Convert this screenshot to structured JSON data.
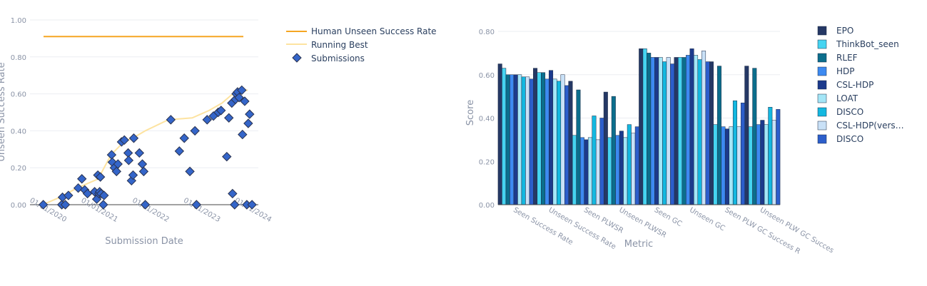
{
  "chart_data": [
    {
      "type": "scatter",
      "xlabel": "Submission Date",
      "ylabel": "Unseen Success Rate",
      "x_ticks": [
        "01/01/2020",
        "01/01/2021",
        "01/01/2022",
        "01/01/2023",
        "01/01/2024"
      ],
      "y_ticks": [
        "0.00",
        "0.20",
        "0.40",
        "0.60",
        "0.80",
        "1.00"
      ],
      "ylim": [
        0,
        1
      ],
      "xlim": [
        "2019-09-01",
        "2024-02-15"
      ],
      "legend_position": "right",
      "human_rate": {
        "name": "Human Unseen Success Rate",
        "value": 0.91,
        "color": "#f5a623"
      },
      "running_best": {
        "name": "Running Best",
        "color": "#fde3a0",
        "x": [
          "2019-12-01",
          "2020-04-01",
          "2020-08-01",
          "2021-01-01",
          "2021-01-20",
          "2021-04-01",
          "2021-07-01",
          "2021-09-01",
          "2021-12-01",
          "2022-05-15",
          "2022-11-01",
          "2023-03-01",
          "2023-06-01",
          "2023-09-01",
          "2023-12-01"
        ],
        "y": [
          0.0,
          0.04,
          0.09,
          0.14,
          0.17,
          0.27,
          0.34,
          0.36,
          0.4,
          0.46,
          0.47,
          0.51,
          0.55,
          0.61,
          0.62
        ]
      },
      "submissions": {
        "name": "Submissions",
        "color": "#3465c9",
        "x": [
          "2019-12-05",
          "2020-04-15",
          "2020-04-20",
          "2020-05-10",
          "2020-06-01",
          "2020-08-10",
          "2020-09-05",
          "2020-09-25",
          "2020-10-15",
          "2020-12-05",
          "2020-12-20",
          "2020-12-28",
          "2021-01-05",
          "2021-01-10",
          "2021-01-15",
          "2021-01-20",
          "2021-02-05",
          "2021-02-10",
          "2021-04-05",
          "2021-04-10",
          "2021-04-25",
          "2021-05-10",
          "2021-05-20",
          "2021-06-15",
          "2021-07-05",
          "2021-08-01",
          "2021-08-05",
          "2021-08-25",
          "2021-09-05",
          "2021-09-10",
          "2021-10-20",
          "2021-11-10",
          "2021-11-20",
          "2021-12-01",
          "2022-06-01",
          "2022-08-01",
          "2022-09-05",
          "2022-10-15",
          "2022-11-20",
          "2022-12-01",
          "2023-02-15",
          "2023-04-01",
          "2023-05-05",
          "2023-05-25",
          "2023-07-05",
          "2023-07-20",
          "2023-08-10",
          "2023-08-15",
          "2023-08-30",
          "2023-09-05",
          "2023-09-10",
          "2023-09-20",
          "2023-10-01",
          "2023-10-20",
          "2023-10-25",
          "2023-11-10",
          "2023-11-25",
          "2023-12-05",
          "2023-12-15",
          "2024-01-01"
        ],
        "y": [
          0.0,
          0.0,
          0.04,
          0.0,
          0.05,
          0.09,
          0.14,
          0.08,
          0.06,
          0.07,
          0.03,
          0.16,
          0.06,
          0.07,
          0.15,
          0.06,
          0.0,
          0.05,
          0.27,
          0.23,
          0.2,
          0.18,
          0.22,
          0.34,
          0.35,
          0.28,
          0.24,
          0.13,
          0.16,
          0.36,
          0.28,
          0.22,
          0.18,
          0.0,
          0.46,
          0.29,
          0.36,
          0.18,
          0.4,
          0.0,
          0.46,
          0.48,
          0.5,
          0.51,
          0.26,
          0.47,
          0.55,
          0.06,
          0.0,
          0.57,
          0.6,
          0.61,
          0.58,
          0.62,
          0.38,
          0.56,
          0.0,
          0.44,
          0.49,
          0.0
        ]
      }
    },
    {
      "type": "bar",
      "xlabel": "Metric",
      "ylabel": "Score",
      "categories": [
        "Seen Success Rate",
        "Unseen Success Rate",
        "Seen PLWSR",
        "Unseen PLWSR",
        "Seen GC",
        "Unseen GC",
        "Seen PLW GC Success R",
        "Unseen PLW GC Succes"
      ],
      "y_ticks": [
        "0.00",
        "0.20",
        "0.40",
        "0.60",
        "0.80"
      ],
      "ylim": [
        0,
        0.82
      ],
      "legend_position": "right",
      "series": [
        {
          "name": "EPO",
          "color": "#253865",
          "values": [
            0.65,
            0.63,
            0.57,
            0.52,
            0.72,
            0.68,
            0.66,
            0.64
          ]
        },
        {
          "name": "ThinkBot_seen",
          "color": "#45d4f1",
          "values": [
            0.63,
            0.61,
            0.32,
            0.31,
            0.72,
            0.68,
            0.37,
            0.36
          ]
        },
        {
          "name": "RLEF",
          "color": "#0b6e8c",
          "values": [
            0.6,
            0.61,
            0.53,
            0.5,
            0.7,
            0.68,
            0.64,
            0.63
          ]
        },
        {
          "name": "HDP",
          "color": "#3d8af1",
          "values": [
            0.6,
            0.58,
            0.31,
            0.32,
            0.68,
            0.69,
            0.36,
            0.37
          ]
        },
        {
          "name": "CSL-HDP",
          "color": "#1c3a8c",
          "values": [
            0.6,
            0.62,
            0.3,
            0.34,
            0.68,
            0.72,
            0.35,
            0.39
          ]
        },
        {
          "name": "LOAT",
          "color": "#a4e6f7",
          "values": [
            0.6,
            0.58,
            0.31,
            0.31,
            0.68,
            0.69,
            0.36,
            0.37
          ]
        },
        {
          "name": "DISCO",
          "color": "#13b8e0",
          "values": [
            0.59,
            0.57,
            0.41,
            0.37,
            0.66,
            0.67,
            0.48,
            0.45
          ]
        },
        {
          "name": "CSL-HDP(vers…",
          "color": "#c9e1f7",
          "values": [
            0.59,
            0.6,
            0.3,
            0.33,
            0.68,
            0.71,
            0.36,
            0.39
          ]
        },
        {
          "name": "DISCO",
          "color": "#2c5ecb",
          "values": [
            0.58,
            0.55,
            0.4,
            0.36,
            0.65,
            0.66,
            0.47,
            0.44
          ]
        }
      ]
    }
  ]
}
